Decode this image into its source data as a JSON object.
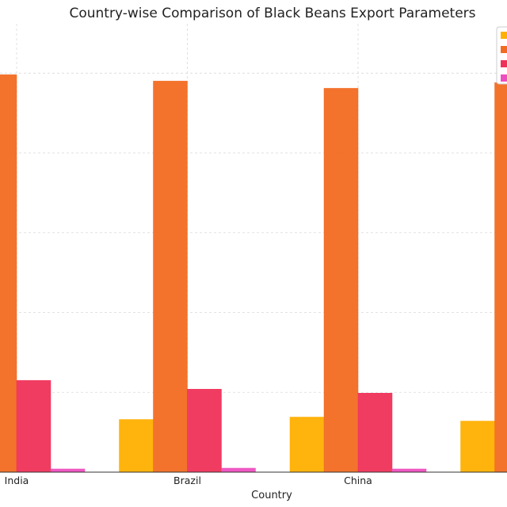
{
  "chart_data": {
    "type": "bar",
    "title": "Country-wise Comparison of Black Beans Export Parameters",
    "xlabel": "Country",
    "ylabel": "",
    "categories": [
      "India",
      "Brazil",
      "China",
      ""
    ],
    "series": [
      {
        "color": "#FFB000",
        "values": [
          null,
          6.6,
          6.9,
          6.4
        ]
      },
      {
        "color": "#F26B21",
        "values": [
          49.8,
          49.0,
          48.1,
          48.8
        ]
      },
      {
        "color": "#F0315A",
        "values": [
          11.5,
          10.4,
          9.9,
          null
        ]
      },
      {
        "color": "#EE4FC0",
        "values": [
          0.4,
          0.5,
          0.4,
          null
        ]
      }
    ],
    "ylim": [
      0,
      54
    ],
    "grid": true,
    "legend_position": "top-right"
  }
}
